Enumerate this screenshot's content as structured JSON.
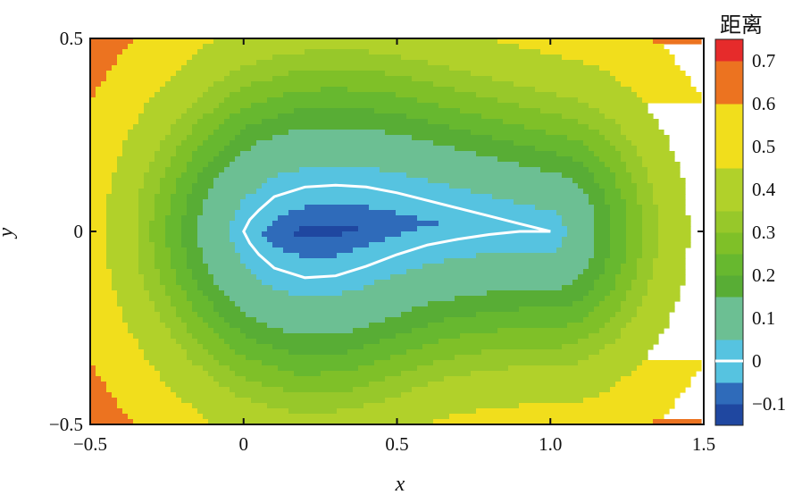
{
  "chart_data": {
    "type": "contour",
    "xlabel": "x",
    "ylabel": "y",
    "xlim": [
      -0.5,
      1.5
    ],
    "ylim": [
      -0.5,
      0.5
    ],
    "x_ticks": [
      {
        "value": -0.5,
        "label": "−0.5"
      },
      {
        "value": 0,
        "label": "0"
      },
      {
        "value": 0.5,
        "label": "0.5"
      },
      {
        "value": 1.0,
        "label": "1.0"
      },
      {
        "value": 1.5,
        "label": "1.5"
      }
    ],
    "y_ticks": [
      {
        "value": -0.5,
        "label": "−0.5"
      },
      {
        "value": 0,
        "label": "0"
      },
      {
        "value": 0.5,
        "label": "0.5"
      }
    ],
    "colorbar": {
      "title": "距离",
      "levels": [
        -0.15,
        -0.1,
        -0.05,
        0,
        0.05,
        0.1,
        0.15,
        0.2,
        0.25,
        0.3,
        0.35,
        0.4,
        0.45,
        0.5,
        0.55,
        0.6,
        0.65,
        0.7,
        0.75
      ],
      "band_colors": [
        "#1f47a0",
        "#2f6bba",
        "#56c3e0",
        "#56c3e0",
        "#6cbf93",
        "#6cbf93",
        "#58ad35",
        "#67b82f",
        "#7fc028",
        "#97c82a",
        "#b1d12a",
        "#b1d12a",
        "#f1de1c",
        "#f1de1c",
        "#f1de1c",
        "#ec7320",
        "#ec7320",
        "#e62b2b"
      ],
      "tick_labels": [
        {
          "value": 0.7,
          "label": "0.7"
        },
        {
          "value": 0.6,
          "label": "0.6"
        },
        {
          "value": 0.5,
          "label": "0.5"
        },
        {
          "value": 0.4,
          "label": "0.4"
        },
        {
          "value": 0.3,
          "label": "0.3"
        },
        {
          "value": 0.2,
          "label": "0.2"
        },
        {
          "value": 0.1,
          "label": "0.1"
        },
        {
          "value": 0,
          "label": "0"
        },
        {
          "value": -0.1,
          "label": "−0.1"
        }
      ]
    },
    "airfoil": {
      "leading_edge": [
        0,
        0
      ],
      "trailing_edge": [
        1.0,
        0
      ],
      "upper_surface": [
        [
          0,
          0
        ],
        [
          0.02,
          0.03
        ],
        [
          0.05,
          0.055
        ],
        [
          0.1,
          0.09
        ],
        [
          0.2,
          0.115
        ],
        [
          0.3,
          0.12
        ],
        [
          0.4,
          0.115
        ],
        [
          0.5,
          0.1
        ],
        [
          0.6,
          0.08
        ],
        [
          0.7,
          0.06
        ],
        [
          0.8,
          0.04
        ],
        [
          0.9,
          0.02
        ],
        [
          1.0,
          0
        ]
      ],
      "lower_surface": [
        [
          0,
          0
        ],
        [
          0.02,
          -0.03
        ],
        [
          0.05,
          -0.06
        ],
        [
          0.1,
          -0.095
        ],
        [
          0.2,
          -0.12
        ],
        [
          0.3,
          -0.115
        ],
        [
          0.4,
          -0.09
        ],
        [
          0.5,
          -0.06
        ],
        [
          0.6,
          -0.035
        ],
        [
          0.7,
          -0.02
        ],
        [
          0.8,
          -0.008
        ],
        [
          0.9,
          0.0
        ],
        [
          1.0,
          0
        ]
      ]
    }
  }
}
